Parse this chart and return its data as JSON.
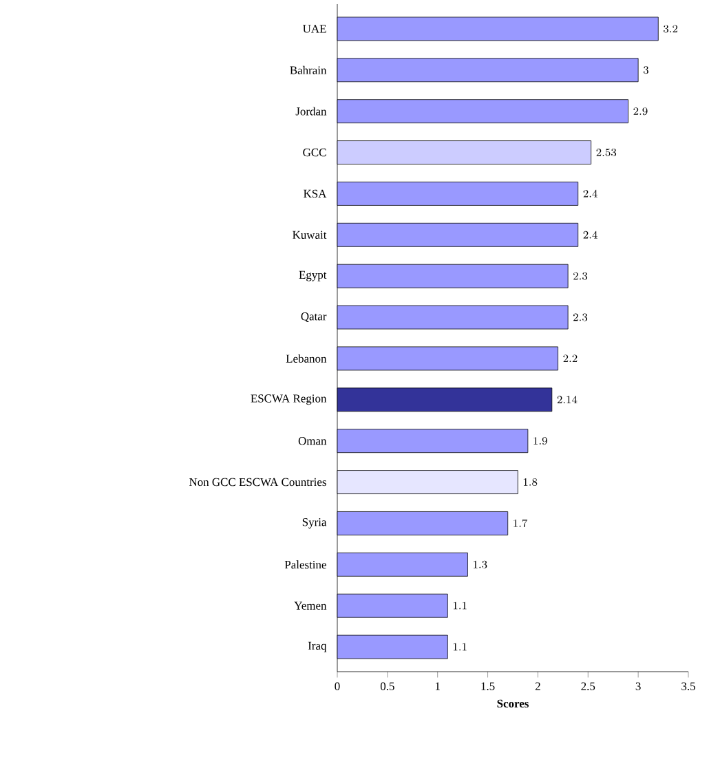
{
  "chart_data": {
    "type": "bar",
    "orientation": "horizontal",
    "xlabel": "Scores",
    "categories": [
      "UAE",
      "Bahrain",
      "Jordan",
      "GCC",
      "KSA",
      "Kuwait",
      "Egypt",
      "Qatar",
      "Lebanon",
      "ESCWA Region",
      "Oman",
      "Non GCC ESCWA Countries",
      "Syria",
      "Palestine",
      "Yemen",
      "Iraq"
    ],
    "values": [
      3.2,
      3,
      2.9,
      2.53,
      2.4,
      2.4,
      2.3,
      2.3,
      2.2,
      2.14,
      1.9,
      1.8,
      1.7,
      1.3,
      1.1,
      1.1
    ],
    "colors": [
      "#9999ff",
      "#9999ff",
      "#9999ff",
      "#ccccff",
      "#9999ff",
      "#9999ff",
      "#9999ff",
      "#9999ff",
      "#9999ff",
      "#333399",
      "#9999ff",
      "#e6e6ff",
      "#9999ff",
      "#9999ff",
      "#9999ff",
      "#9999ff"
    ],
    "xlim": [
      0,
      3.5
    ],
    "xticks": [
      0,
      0.5,
      1,
      1.5,
      2,
      2.5,
      3,
      3.5
    ],
    "data_labels": true
  }
}
